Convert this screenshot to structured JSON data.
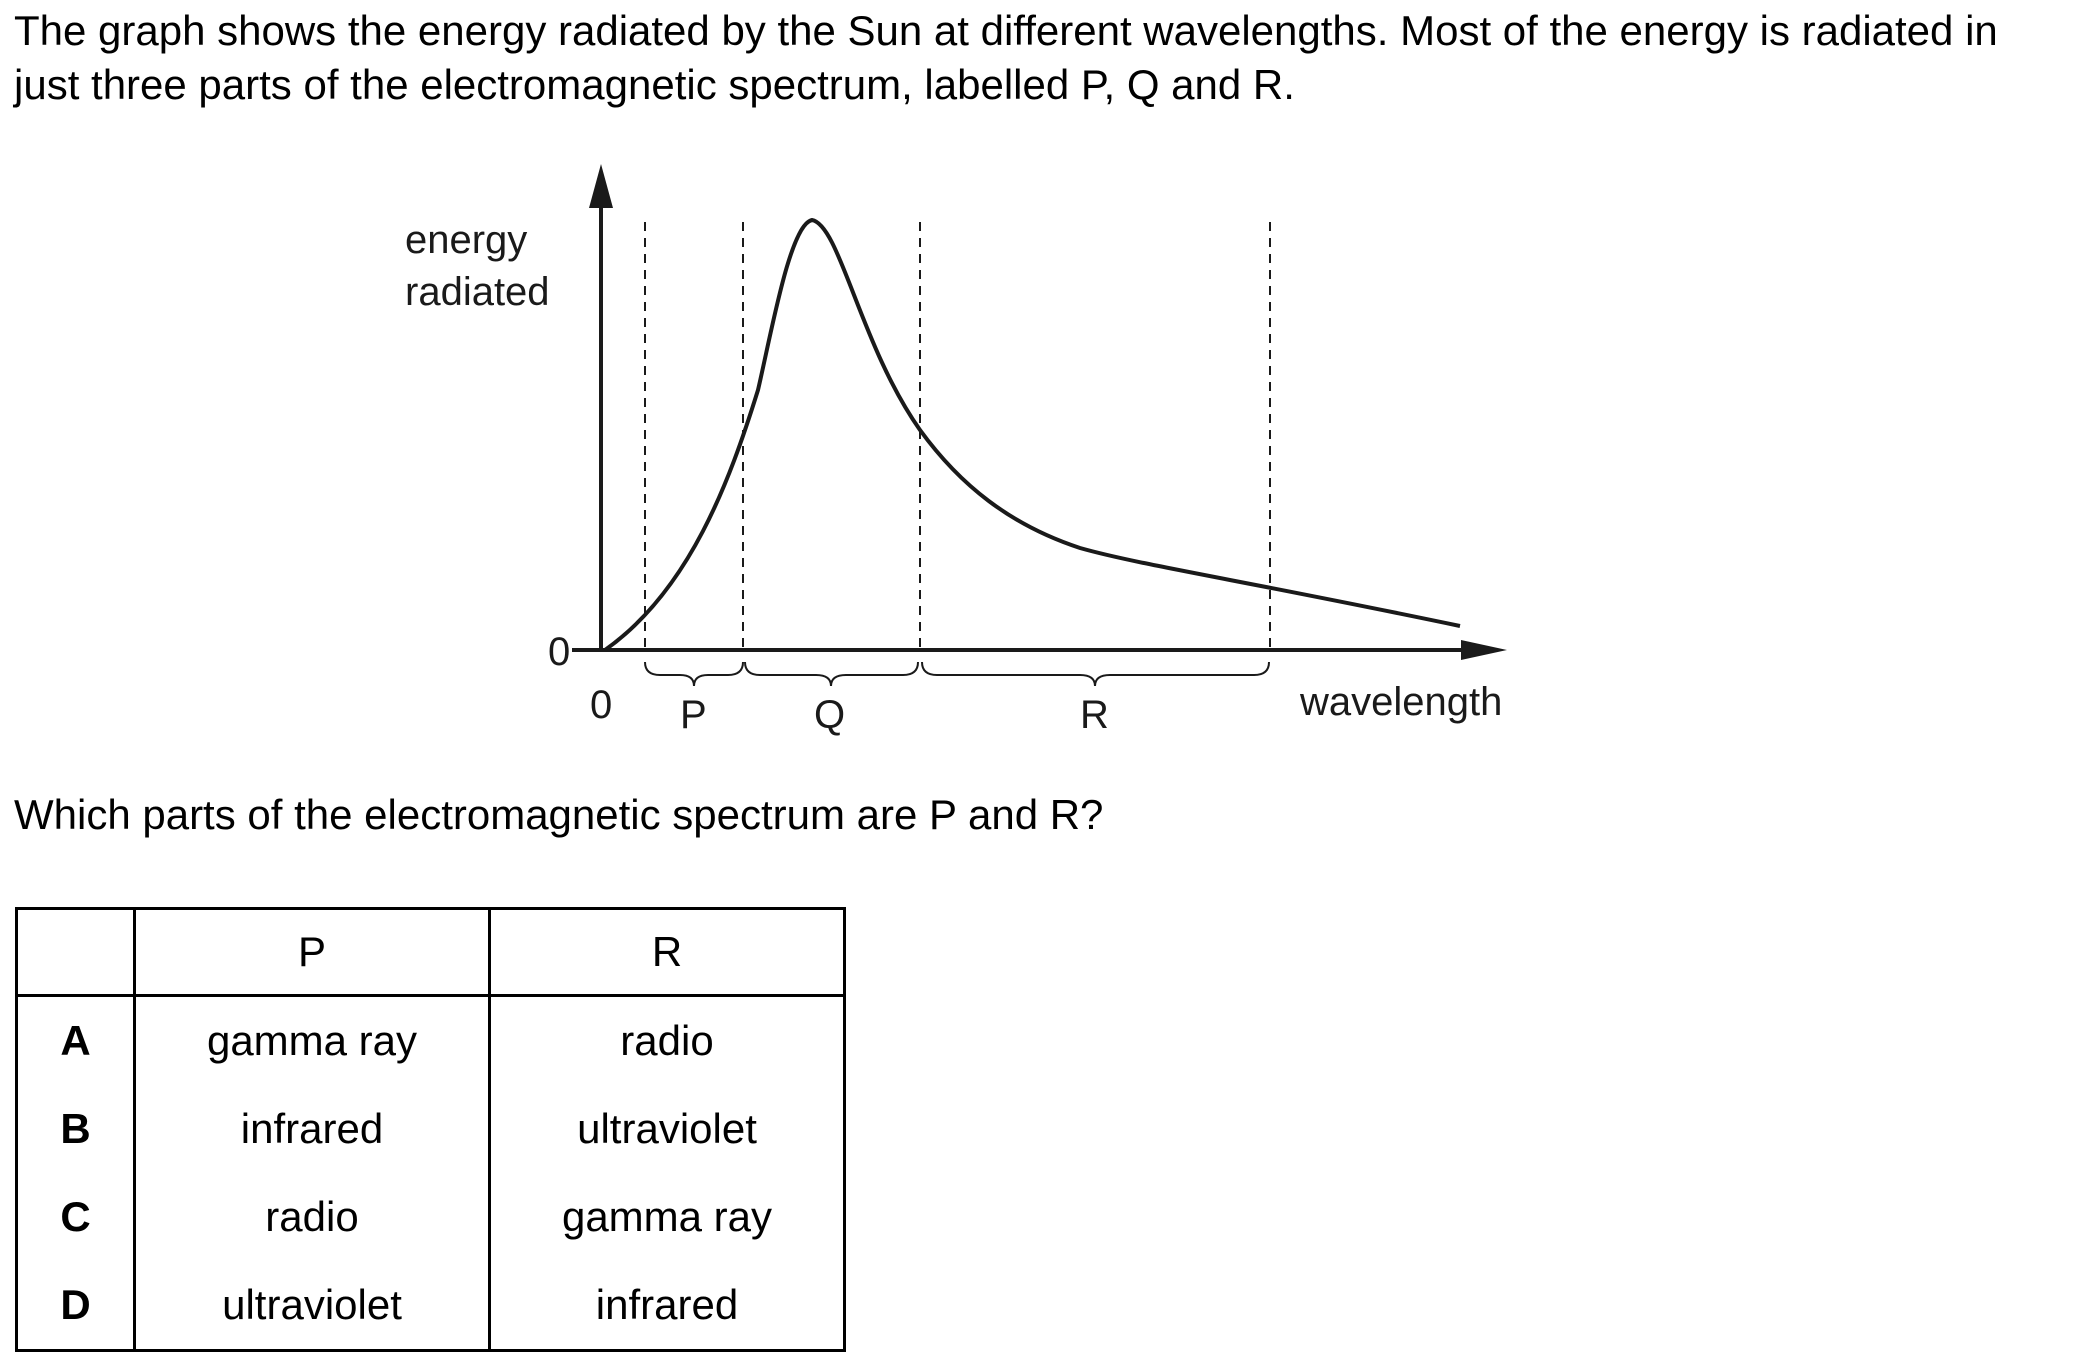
{
  "intro_text": "The graph shows the energy radiated by the Sun at different wavelengths. Most of the energy is radiated in just three parts of the electromagnetic spectrum, labelled P, Q and R.",
  "question_text": "Which parts of the electromagnetic spectrum are P and R?",
  "graph": {
    "y_label_line1": "energy",
    "y_label_line2": "radiated",
    "x_label": "wavelength",
    "y_origin_label": "0",
    "x_origin_label": "0",
    "region_labels": [
      "P",
      "Q",
      "R"
    ]
  },
  "table": {
    "headers": [
      "",
      "P",
      "R"
    ],
    "rows": [
      {
        "letter": "A",
        "p": "gamma ray",
        "r": "radio"
      },
      {
        "letter": "B",
        "p": "infrared",
        "r": "ultraviolet"
      },
      {
        "letter": "C",
        "p": "radio",
        "r": "gamma ray"
      },
      {
        "letter": "D",
        "p": "ultraviolet",
        "r": "infrared"
      }
    ]
  },
  "colors": {
    "ink": "#000000",
    "graph_ink": "#1a1a1a"
  }
}
